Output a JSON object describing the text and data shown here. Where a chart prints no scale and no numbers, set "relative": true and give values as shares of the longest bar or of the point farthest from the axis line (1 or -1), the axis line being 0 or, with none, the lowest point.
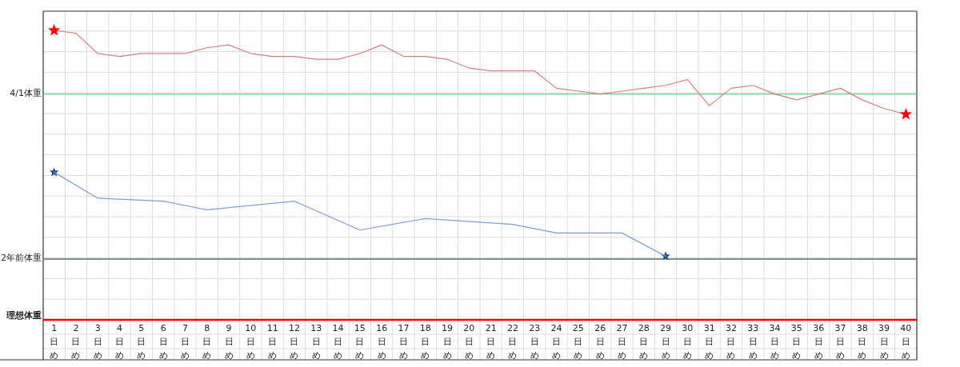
{
  "chart_data": {
    "type": "line",
    "relative": true,
    "grid": true,
    "categories": [
      "1日め",
      "2日め",
      "3日め",
      "4日め",
      "5日め",
      "6日め",
      "7日め",
      "8日め",
      "9日め",
      "10日め",
      "11日め",
      "12日め",
      "13日め",
      "14日め",
      "15日め",
      "16日め",
      "17日め",
      "18日め",
      "19日め",
      "20日め",
      "21日め",
      "22日め",
      "23日め",
      "24日め",
      "25日め",
      "26日め",
      "27日め",
      "28日め",
      "29日め",
      "30日め",
      "31日め",
      "32日め",
      "33日め",
      "34日め",
      "35日め",
      "36日め",
      "37日め",
      "38日め",
      "39日め",
      "40日め"
    ],
    "series": [
      {
        "color": "#d47f7f",
        "values": [
          1.0,
          0.99,
          0.92,
          0.91,
          0.92,
          0.92,
          0.92,
          0.94,
          0.95,
          0.92,
          0.91,
          0.91,
          0.9,
          0.9,
          0.92,
          0.95,
          0.91,
          0.91,
          0.9,
          0.87,
          0.86,
          0.86,
          0.86,
          0.8,
          0.79,
          0.78,
          0.79,
          0.8,
          0.81,
          0.83,
          0.74,
          0.8,
          0.81,
          0.78,
          0.76,
          0.78,
          0.8,
          0.76,
          0.73,
          0.71
        ]
      },
      {
        "type": "scatter",
        "marker": "star",
        "color": "#ff0000",
        "values": [
          1.0,
          null,
          null,
          null,
          null,
          null,
          null,
          null,
          null,
          null,
          null,
          null,
          null,
          null,
          null,
          null,
          null,
          null,
          null,
          null,
          null,
          null,
          null,
          null,
          null,
          null,
          null,
          null,
          null,
          null,
          null,
          null,
          null,
          null,
          null,
          null,
          null,
          null,
          null,
          0.71
        ]
      },
      {
        "type": "scatter",
        "marker": "star",
        "color": "#1f497d",
        "values": [
          0.51,
          null,
          null,
          null,
          null,
          null,
          null,
          null,
          null,
          null,
          null,
          null,
          null,
          null,
          null,
          null,
          null,
          null,
          null,
          null,
          null,
          null,
          null,
          null,
          null,
          null,
          null,
          null,
          0.22,
          null,
          null,
          null,
          null,
          null,
          null,
          null,
          null,
          null,
          null,
          null
        ]
      },
      {
        "color": "#7f9fcf",
        "values": [
          0.51,
          null,
          0.42,
          null,
          null,
          0.41,
          null,
          0.38,
          null,
          null,
          null,
          0.41,
          null,
          null,
          0.31,
          null,
          null,
          0.35,
          null,
          null,
          null,
          0.33,
          null,
          0.3,
          null,
          null,
          0.3,
          null,
          0.22,
          null,
          null,
          null,
          null,
          null,
          null,
          null,
          null,
          null,
          null,
          null
        ]
      }
    ],
    "ref_lines": [
      {
        "axis": "y",
        "value": 0.78,
        "label": "4/1体重",
        "color": "#6fcf8f"
      },
      {
        "axis": "y",
        "value": 0.21,
        "label": "2年前体重",
        "color": "#5f6f6f"
      }
    ],
    "annotations": [
      "理想体重"
    ]
  }
}
